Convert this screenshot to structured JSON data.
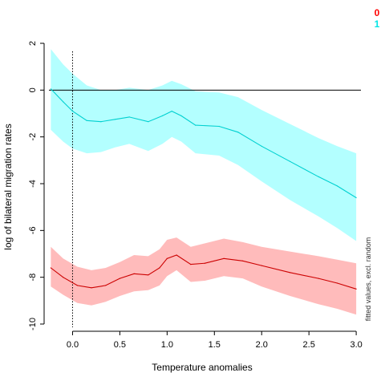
{
  "chart_data": {
    "type": "line",
    "xlabel": "Temperature anomalies",
    "ylabel": "log of bilateral migration rates",
    "side_note": "fitted values, excl. random",
    "xlim": [
      -0.25,
      3.05
    ],
    "ylim": [
      -10,
      2
    ],
    "x_ticks": [
      "0.0",
      "0.5",
      "1.0",
      "1.5",
      "2.0",
      "2.5",
      "3.0"
    ],
    "y_ticks": [
      "-10",
      "-8",
      "-6",
      "-4",
      "-2",
      "0",
      "2"
    ],
    "reference_lines": {
      "horizontal_y": 0,
      "vertical_x": 0
    },
    "legend": [
      {
        "label": "0",
        "color": "#ff0000"
      },
      {
        "label": "1",
        "color": "#00e5e5"
      }
    ],
    "series": [
      {
        "name": "1",
        "line_color": "#00d0d0",
        "band_color": "#b3ffff",
        "points": [
          {
            "x": -0.23,
            "y": 0.05,
            "lower": -1.7,
            "upper": 1.75
          },
          {
            "x": -0.1,
            "y": -0.5,
            "lower": -2.2,
            "upper": 1.1
          },
          {
            "x": 0.0,
            "y": -0.9,
            "lower": -2.5,
            "upper": 0.7
          },
          {
            "x": 0.15,
            "y": -1.3,
            "lower": -2.7,
            "upper": 0.2
          },
          {
            "x": 0.3,
            "y": -1.35,
            "lower": -2.65,
            "upper": 0.0
          },
          {
            "x": 0.45,
            "y": -1.25,
            "lower": -2.45,
            "upper": 0.0
          },
          {
            "x": 0.6,
            "y": -1.15,
            "lower": -2.3,
            "upper": 0.1
          },
          {
            "x": 0.8,
            "y": -1.35,
            "lower": -2.6,
            "upper": 0.0
          },
          {
            "x": 0.95,
            "y": -1.1,
            "lower": -2.3,
            "upper": 0.2
          },
          {
            "x": 1.05,
            "y": -0.9,
            "lower": -2.0,
            "upper": 0.4
          },
          {
            "x": 1.15,
            "y": -1.1,
            "lower": -2.2,
            "upper": 0.25
          },
          {
            "x": 1.3,
            "y": -1.5,
            "lower": -2.7,
            "upper": -0.05
          },
          {
            "x": 1.55,
            "y": -1.55,
            "lower": -2.8,
            "upper": -0.1
          },
          {
            "x": 1.75,
            "y": -1.8,
            "lower": -3.2,
            "upper": -0.3
          },
          {
            "x": 2.0,
            "y": -2.4,
            "lower": -3.9,
            "upper": -0.85
          },
          {
            "x": 2.3,
            "y": -3.05,
            "lower": -4.7,
            "upper": -1.45
          },
          {
            "x": 2.6,
            "y": -3.7,
            "lower": -5.4,
            "upper": -2.05
          },
          {
            "x": 2.8,
            "y": -4.1,
            "lower": -5.9,
            "upper": -2.4
          },
          {
            "x": 3.0,
            "y": -4.6,
            "lower": -6.45,
            "upper": -2.7
          }
        ]
      },
      {
        "name": "0",
        "line_color": "#cc0000",
        "band_color": "#ffbbbb",
        "points": [
          {
            "x": -0.23,
            "y": -7.6,
            "lower": -8.4,
            "upper": -6.7
          },
          {
            "x": -0.1,
            "y": -8.0,
            "lower": -8.75,
            "upper": -7.2
          },
          {
            "x": 0.05,
            "y": -8.35,
            "lower": -9.1,
            "upper": -7.55
          },
          {
            "x": 0.2,
            "y": -8.45,
            "lower": -9.2,
            "upper": -7.7
          },
          {
            "x": 0.35,
            "y": -8.35,
            "lower": -9.05,
            "upper": -7.6
          },
          {
            "x": 0.5,
            "y": -8.05,
            "lower": -8.8,
            "upper": -7.35
          },
          {
            "x": 0.65,
            "y": -7.85,
            "lower": -8.6,
            "upper": -7.05
          },
          {
            "x": 0.8,
            "y": -7.9,
            "lower": -8.55,
            "upper": -7.1
          },
          {
            "x": 0.92,
            "y": -7.6,
            "lower": -8.35,
            "upper": -6.8
          },
          {
            "x": 1.0,
            "y": -7.2,
            "lower": -7.95,
            "upper": -6.4
          },
          {
            "x": 1.1,
            "y": -7.05,
            "lower": -7.7,
            "upper": -6.3
          },
          {
            "x": 1.25,
            "y": -7.45,
            "lower": -8.2,
            "upper": -6.7
          },
          {
            "x": 1.4,
            "y": -7.4,
            "lower": -8.15,
            "upper": -6.55
          },
          {
            "x": 1.6,
            "y": -7.2,
            "lower": -7.95,
            "upper": -6.35
          },
          {
            "x": 1.8,
            "y": -7.3,
            "lower": -8.05,
            "upper": -6.5
          },
          {
            "x": 2.0,
            "y": -7.5,
            "lower": -8.4,
            "upper": -6.7
          },
          {
            "x": 2.3,
            "y": -7.8,
            "lower": -8.8,
            "upper": -6.9
          },
          {
            "x": 2.6,
            "y": -8.05,
            "lower": -9.15,
            "upper": -7.1
          },
          {
            "x": 2.8,
            "y": -8.25,
            "lower": -9.35,
            "upper": -7.25
          },
          {
            "x": 3.0,
            "y": -8.5,
            "lower": -9.6,
            "upper": -7.4
          }
        ]
      }
    ]
  }
}
